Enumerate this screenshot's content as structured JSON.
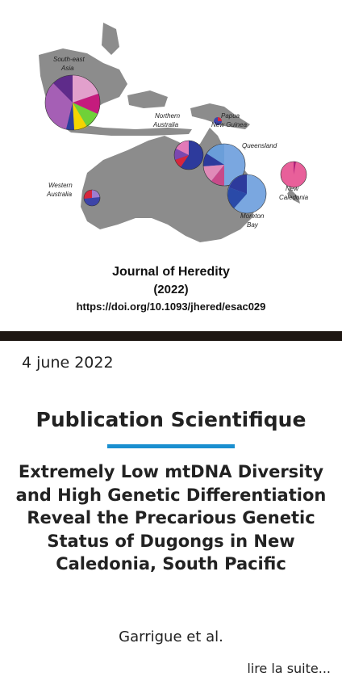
{
  "figure": {
    "map_labels": {
      "southeast_asia_1": "South-east",
      "southeast_asia_2": "Asia",
      "northern_australia_1": "Northern",
      "northern_australia_2": "Australia",
      "papua_1": "Papua",
      "papua_2": "New Guinea",
      "queensland": "Queensland",
      "western_australia_1": "Western",
      "western_australia_2": "Australia",
      "new_caledonia_1": "New",
      "new_caledonia_2": "Caledonia",
      "moreton_1": "Moreton",
      "moreton_2": "Bay"
    },
    "caption_journal": "Journal of Heredity",
    "caption_year": "(2022)",
    "caption_doi": "https://doi.org/10.1093/jhered/esac029"
  },
  "post": {
    "date": "4 june 2022",
    "category": "Publication Scientifique",
    "title": "Extremely Low mtDNA Diversity and High Genetic Differentiation Reveal the Precarious Genetic Status of Dugongs in New Caledonia, South Pacific",
    "authors": "Garrigue et al.",
    "read_more": "lire la suite..."
  },
  "colors": {
    "land": "#8c8c8c",
    "divider": "#1e1713",
    "accent_rule": "#1a8fd0"
  }
}
